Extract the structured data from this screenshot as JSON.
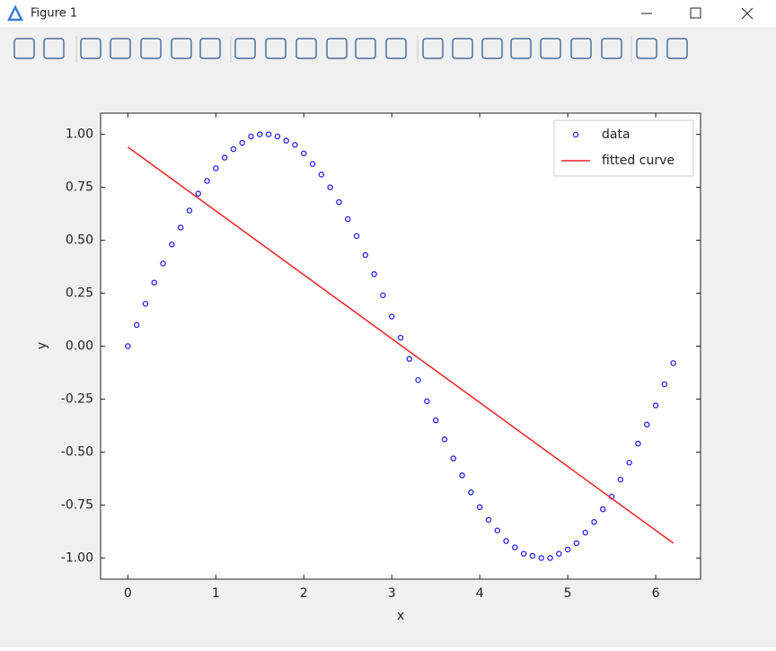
{
  "window": {
    "title": "Figure 1"
  },
  "chart_data": {
    "type": "line",
    "xlabel": "x",
    "ylabel": "y",
    "xlim": [
      -0.31,
      6.51
    ],
    "ylim": [
      -1.1,
      1.1
    ],
    "xticks": [
      0,
      1,
      2,
      3,
      4,
      5,
      6
    ],
    "yticks": [
      {
        "value": -1,
        "label": "-1.00"
      },
      {
        "value": -0.75,
        "label": "-0.75"
      },
      {
        "value": -0.5,
        "label": "-0.50"
      },
      {
        "value": -0.25,
        "label": "-0.25"
      },
      {
        "value": 0,
        "label": "0.00"
      },
      {
        "value": 0.25,
        "label": "0.25"
      },
      {
        "value": 0.5,
        "label": "0.50"
      },
      {
        "value": 0.75,
        "label": "0.75"
      },
      {
        "value": 1,
        "label": "1.00"
      }
    ],
    "legend": "upper right",
    "series": [
      {
        "name": "data",
        "color": "#2222ee",
        "style": "markers",
        "x": [
          0,
          0.1,
          0.2,
          0.3,
          0.4,
          0.5,
          0.6,
          0.7,
          0.8,
          0.9,
          1.0,
          1.1,
          1.2,
          1.3,
          1.4,
          1.5,
          1.6,
          1.7,
          1.8,
          1.9,
          2.0,
          2.1,
          2.2,
          2.3,
          2.4,
          2.5,
          2.6,
          2.7,
          2.8,
          2.9,
          3.0,
          3.1,
          3.2,
          3.3,
          3.4,
          3.5,
          3.6,
          3.7,
          3.8,
          3.9,
          4.0,
          4.1,
          4.2,
          4.3,
          4.4,
          4.5,
          4.6,
          4.7,
          4.8,
          4.9,
          5.0,
          5.1,
          5.2,
          5.3,
          5.4,
          5.5,
          5.6,
          5.7,
          5.8,
          5.9,
          6.0,
          6.1,
          6.2
        ],
        "values": [
          0,
          0.1,
          0.2,
          0.3,
          0.39,
          0.48,
          0.56,
          0.64,
          0.72,
          0.78,
          0.84,
          0.89,
          0.93,
          0.96,
          0.99,
          1.0,
          1.0,
          0.99,
          0.97,
          0.95,
          0.91,
          0.86,
          0.81,
          0.75,
          0.68,
          0.6,
          0.52,
          0.43,
          0.34,
          0.24,
          0.14,
          0.04,
          -0.06,
          -0.16,
          -0.26,
          -0.35,
          -0.44,
          -0.53,
          -0.61,
          -0.69,
          -0.76,
          -0.82,
          -0.87,
          -0.92,
          -0.95,
          -0.98,
          -0.99,
          -1.0,
          -1.0,
          -0.98,
          -0.96,
          -0.93,
          -0.88,
          -0.83,
          -0.77,
          -0.71,
          -0.63,
          -0.55,
          -0.46,
          -0.37,
          -0.28,
          -0.18,
          -0.08
        ]
      },
      {
        "name": "fitted curve",
        "color": "#ee2222",
        "style": "line",
        "x": [
          0,
          6.2
        ],
        "values": [
          0.94,
          -0.93
        ]
      }
    ]
  }
}
